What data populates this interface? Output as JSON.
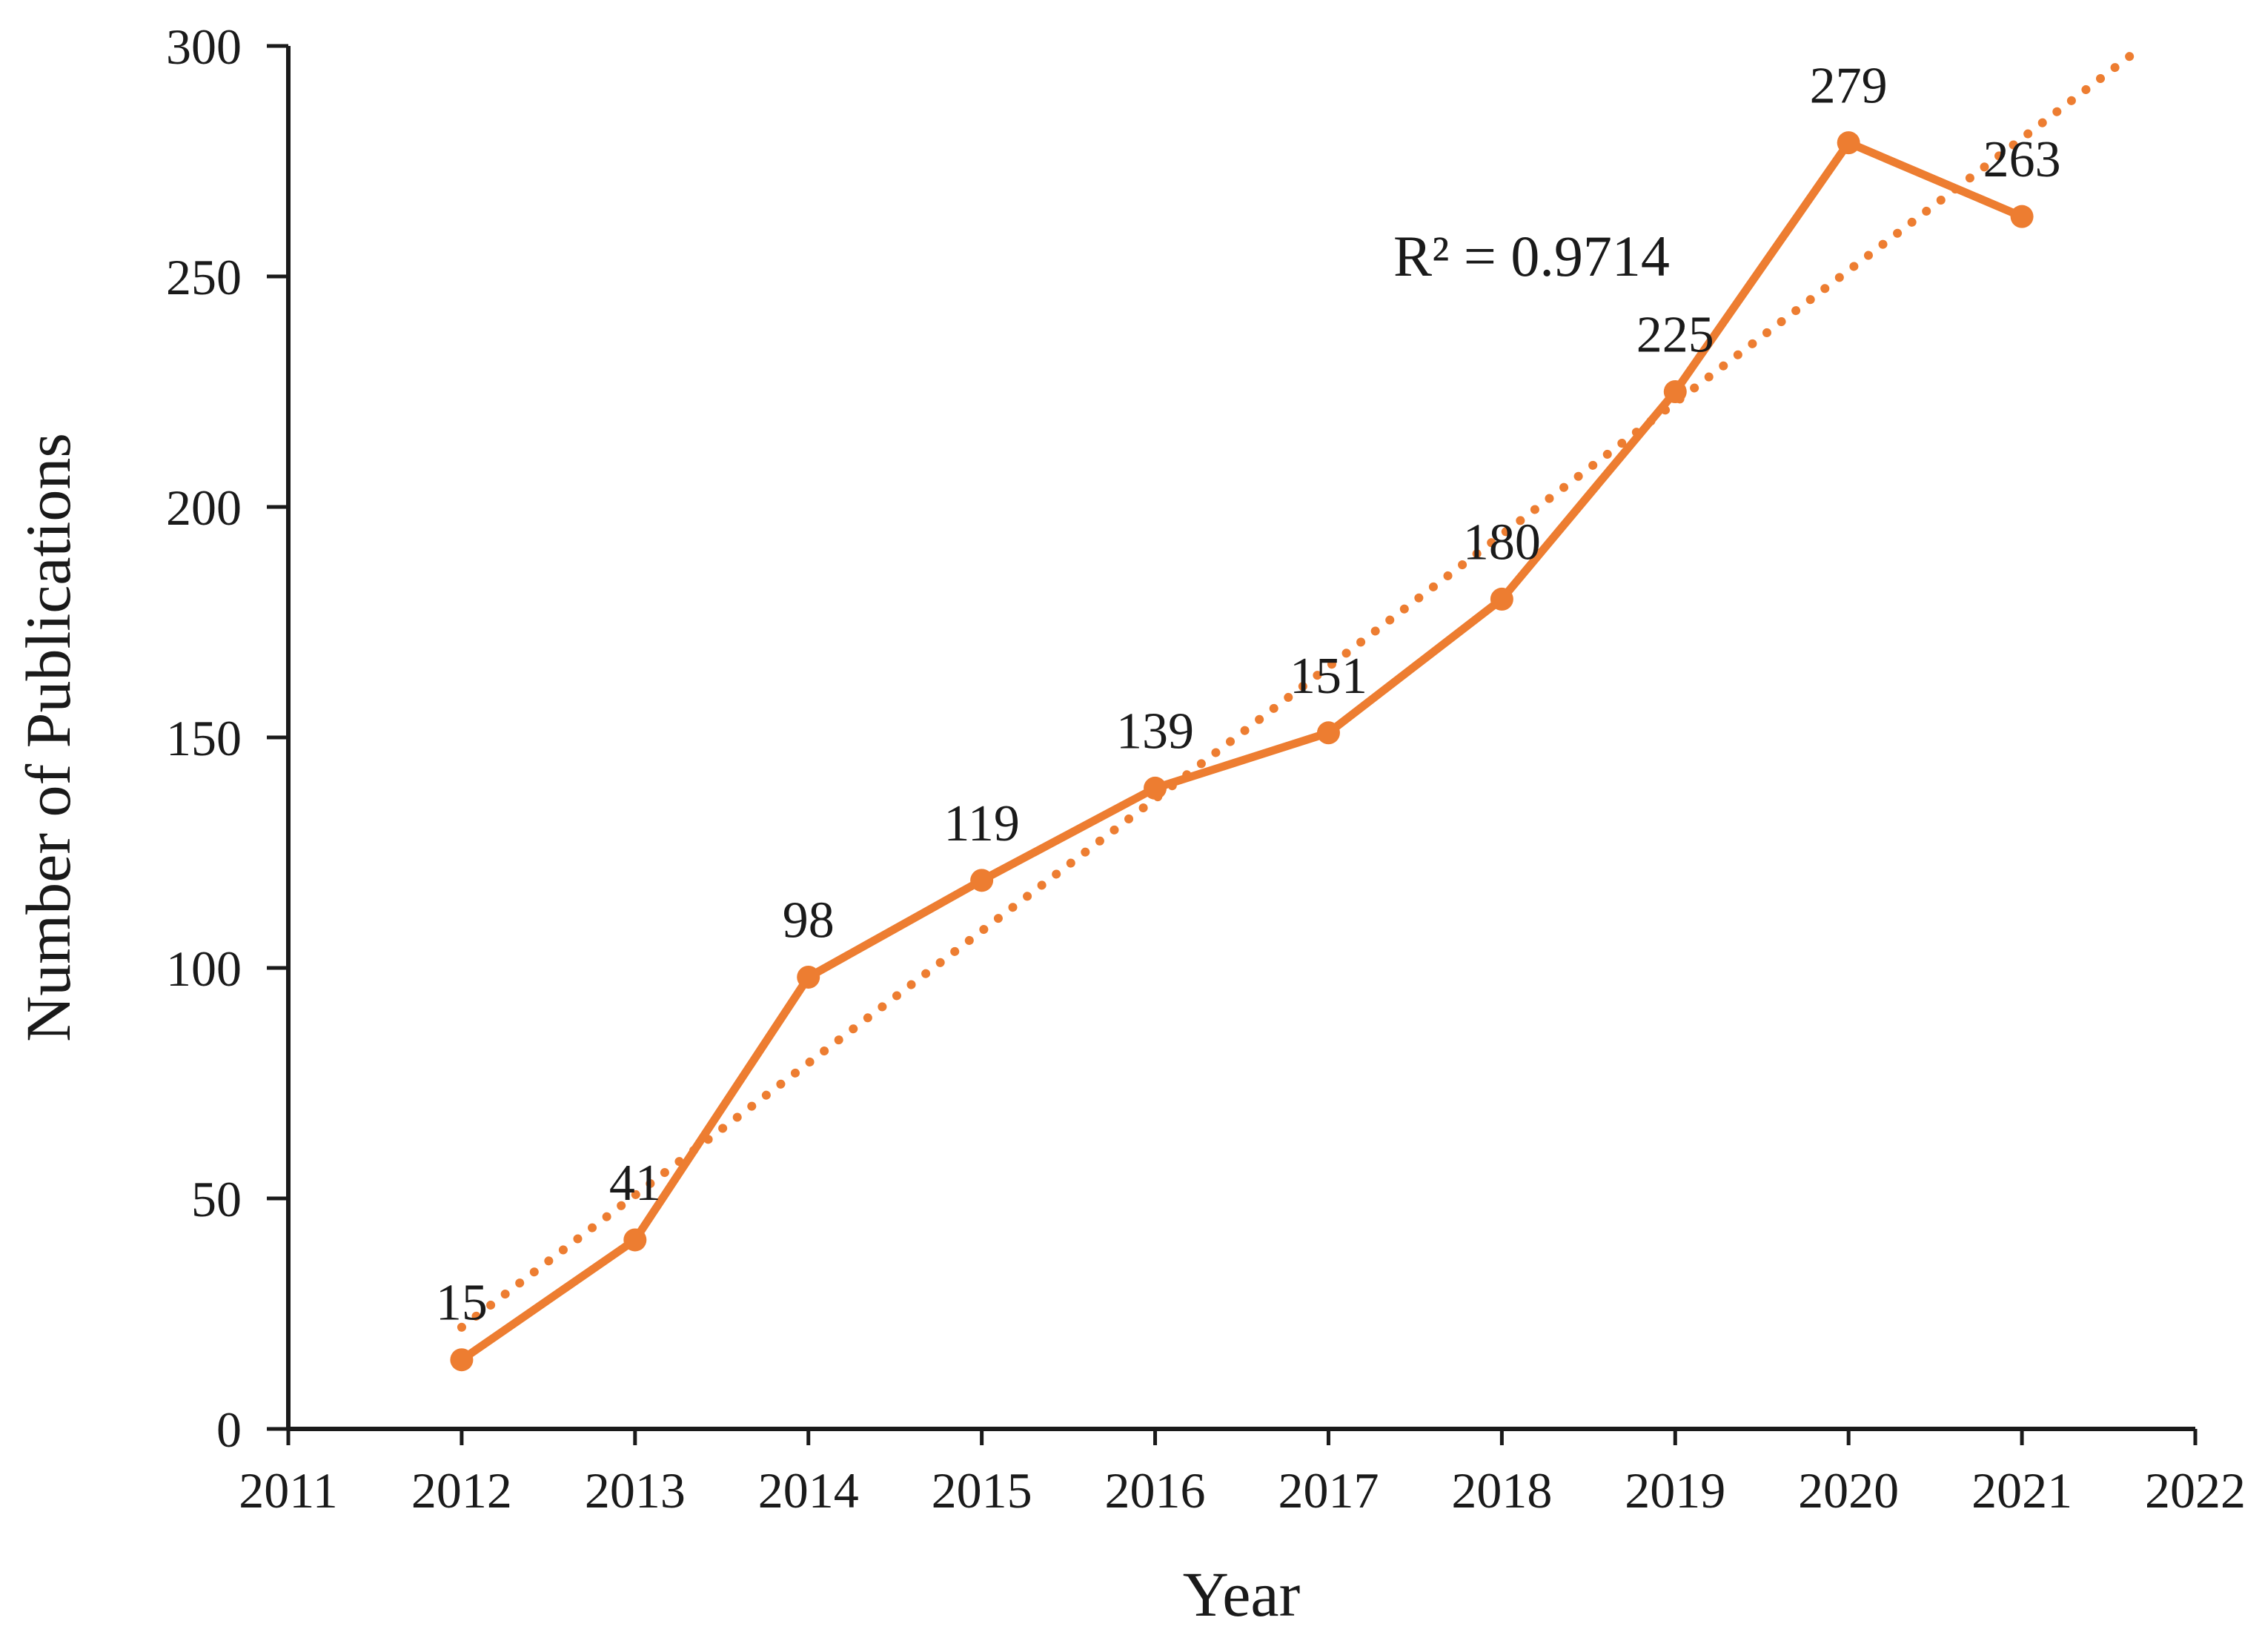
{
  "chart_data": {
    "type": "line",
    "title": "",
    "xlabel": "Year",
    "ylabel": "Number of Publications",
    "categories": [
      2012,
      2013,
      2014,
      2015,
      2016,
      2017,
      2018,
      2019,
      2020,
      2021
    ],
    "values": [
      15,
      41,
      98,
      119,
      139,
      151,
      180,
      225,
      279,
      263
    ],
    "data_labels": [
      "15",
      "41",
      "98",
      "119",
      "139",
      "151",
      "180",
      "225",
      "279",
      "263"
    ],
    "x_ticks": [
      "2011",
      "2012",
      "2013",
      "2014",
      "2015",
      "2016",
      "2017",
      "2018",
      "2019",
      "2020",
      "2021",
      "2022"
    ],
    "xlim": [
      2011,
      2022
    ],
    "y_ticks": [
      "0",
      "50",
      "100",
      "150",
      "200",
      "250",
      "300"
    ],
    "ylim": [
      0,
      300
    ],
    "grid": false,
    "legend": "none",
    "series_color": "#ED7D31",
    "axis_color": "#1a1a1a",
    "marker_style": "filled-circle",
    "trendline": {
      "type": "linear",
      "style": "dotted",
      "color": "#ED7D31",
      "label": "R² = 0.9714",
      "r_squared": 0.9714,
      "starts_at_year": 2012,
      "extends_to_year": 2021.69
    }
  }
}
